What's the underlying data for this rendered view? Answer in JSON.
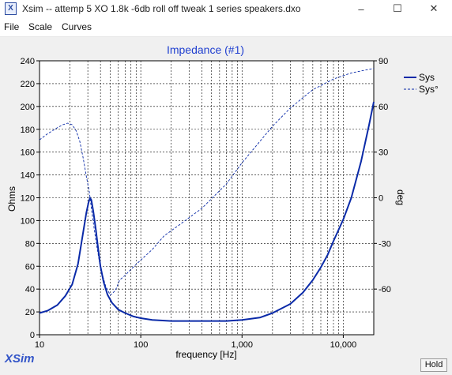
{
  "window": {
    "icon_letter": "X",
    "title": "Xsim -- attemp 5 XO 1.8k -6db roll off tweak 1 series speakers.dxo",
    "minimize_glyph": "–",
    "maximize_glyph": "☐",
    "close_glyph": "✕"
  },
  "menu": {
    "items": [
      "File",
      "Scale",
      "Curves"
    ]
  },
  "hold_label": "Hold",
  "logo": "XSim",
  "colors": {
    "sys": "#0a2aa8",
    "title": "#1f3fd0",
    "logo": "#3355c8"
  },
  "chart_data": {
    "type": "line",
    "title": "Impedance (#1)",
    "xlabel": "frequency [Hz]",
    "ylabel": "Ohms",
    "y2label": "deg",
    "x_scale": "log",
    "xlim": [
      10,
      20000
    ],
    "ylim": [
      0,
      240
    ],
    "y2lim": [
      -90,
      90
    ],
    "x_ticks": [
      10,
      100,
      1000,
      10000
    ],
    "x_tick_labels": [
      "10",
      "100",
      "1,000",
      "10,000"
    ],
    "y_ticks": [
      0,
      20,
      40,
      60,
      80,
      100,
      120,
      140,
      160,
      180,
      200,
      220,
      240
    ],
    "y_tick_labels": [
      "0",
      "20",
      "40",
      "60",
      "80",
      "100",
      "120",
      "140",
      "160",
      "180",
      "200",
      "220",
      "240"
    ],
    "y2_ticks": [
      90,
      60,
      30,
      0,
      -30,
      -60
    ],
    "y2_tick_labels": [
      "90",
      "60",
      "30",
      "0",
      "-30",
      "-60"
    ],
    "grid": true,
    "legend_position": "top-right",
    "series": [
      {
        "name": "Sys",
        "axis": "left",
        "style": "solid",
        "points": [
          [
            10,
            19
          ],
          [
            12,
            21
          ],
          [
            15,
            26
          ],
          [
            18,
            34
          ],
          [
            21,
            44
          ],
          [
            24,
            62
          ],
          [
            27,
            90
          ],
          [
            29,
            107
          ],
          [
            30.5,
            116
          ],
          [
            31.5,
            120
          ],
          [
            32.5,
            118
          ],
          [
            34,
            108
          ],
          [
            36,
            92
          ],
          [
            38,
            75
          ],
          [
            40,
            60
          ],
          [
            43,
            46
          ],
          [
            47,
            35
          ],
          [
            52,
            28
          ],
          [
            60,
            22
          ],
          [
            70,
            19
          ],
          [
            85,
            16
          ],
          [
            100,
            14.5
          ],
          [
            130,
            13
          ],
          [
            200,
            12
          ],
          [
            400,
            12
          ],
          [
            700,
            12
          ],
          [
            1000,
            13
          ],
          [
            1500,
            15
          ],
          [
            2000,
            19
          ],
          [
            3000,
            27
          ],
          [
            4000,
            37
          ],
          [
            5000,
            48
          ],
          [
            6000,
            59
          ],
          [
            7000,
            70
          ],
          [
            8000,
            82
          ],
          [
            10000,
            101
          ],
          [
            12000,
            120
          ],
          [
            15000,
            152
          ],
          [
            18000,
            184
          ],
          [
            20000,
            204
          ]
        ]
      },
      {
        "name": "Sys°",
        "axis": "right",
        "style": "dashed",
        "points": [
          [
            10,
            38
          ],
          [
            12,
            42
          ],
          [
            15,
            46
          ],
          [
            17,
            48
          ],
          [
            19,
            49
          ],
          [
            21,
            48
          ],
          [
            23,
            44
          ],
          [
            25,
            37
          ],
          [
            27,
            26
          ],
          [
            29,
            14
          ],
          [
            31,
            4
          ],
          [
            33,
            -10
          ],
          [
            36,
            -28
          ],
          [
            40,
            -46
          ],
          [
            45,
            -58
          ],
          [
            50,
            -64
          ],
          [
            56,
            -61
          ],
          [
            62,
            -54
          ],
          [
            70,
            -51
          ],
          [
            80,
            -47
          ],
          [
            100,
            -41
          ],
          [
            130,
            -34
          ],
          [
            170,
            -25
          ],
          [
            250,
            -17
          ],
          [
            400,
            -7
          ],
          [
            700,
            9
          ],
          [
            1000,
            23
          ],
          [
            1500,
            37
          ],
          [
            2000,
            47
          ],
          [
            3000,
            59
          ],
          [
            5000,
            71
          ],
          [
            8000,
            78
          ],
          [
            12000,
            82
          ],
          [
            20000,
            85
          ]
        ]
      }
    ]
  }
}
